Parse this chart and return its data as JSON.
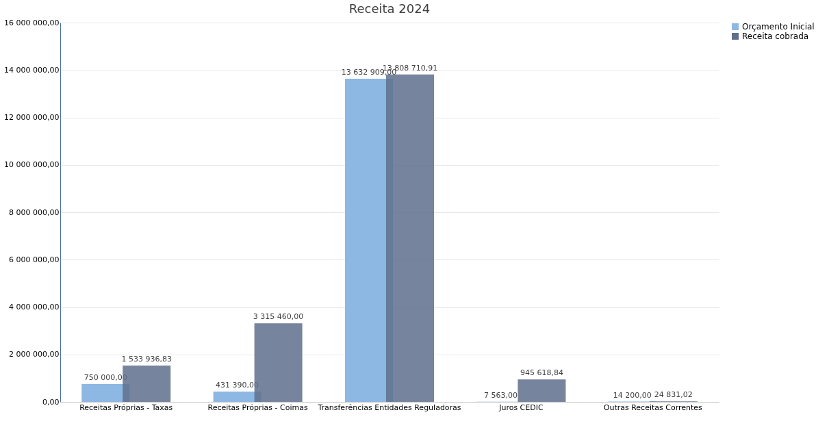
{
  "chart_data": {
    "type": "bar",
    "title": "Receita 2024",
    "categories": [
      "Receitas  Próprias - Taxas",
      "Receitas  Próprias - Coimas",
      "Transferências  Entidades Reguladoras",
      "Juros CEDIC",
      "Outras Receitas  Correntes"
    ],
    "series": [
      {
        "name": "Orçamento Inicial",
        "color": "#8cb8e3",
        "values": [
          750000,
          431390,
          13632909,
          7563,
          14200
        ],
        "value_labels": [
          "750 000,00",
          "431 390,00",
          "13 632 909,00",
          "7 563,00",
          "14 200,00"
        ]
      },
      {
        "name": "Receita cobrada",
        "color": "#5f6f8c",
        "values": [
          1533936.83,
          3315460,
          13808710.91,
          945618.84,
          24831.02
        ],
        "value_labels": [
          "1 533 936,83",
          "3 315 460,00",
          "13 808 710,91",
          "945 618,84",
          "24 831,02"
        ]
      }
    ],
    "ylim": [
      0,
      16000000
    ],
    "yticks": [
      {
        "value": 0,
        "label": "0,00"
      },
      {
        "value": 2000000,
        "label": "2 000 000,00"
      },
      {
        "value": 4000000,
        "label": "4 000 000,00"
      },
      {
        "value": 6000000,
        "label": "6 000 000,00"
      },
      {
        "value": 8000000,
        "label": "8 000 000,00"
      },
      {
        "value": 10000000,
        "label": "10 000 000,00"
      },
      {
        "value": 12000000,
        "label": "12 000 000,00"
      },
      {
        "value": 14000000,
        "label": "14 000 000,00"
      },
      {
        "value": 16000000,
        "label": "16 000 000,00"
      }
    ],
    "grid": "y",
    "legend": "right"
  }
}
